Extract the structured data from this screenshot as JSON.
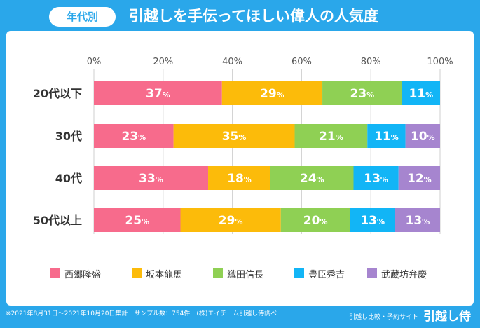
{
  "header": {
    "badge": "年代別",
    "title": "引越しを手伝ってほしい偉人の人気度"
  },
  "chart_data": {
    "type": "bar",
    "orientation": "horizontal",
    "stacked": true,
    "title": "引越しを手伝ってほしい偉人の人気度",
    "categories": [
      "20代以下",
      "30代",
      "40代",
      "50代以上"
    ],
    "series": [
      {
        "name": "西郷隆盛",
        "color": "#f76b8c",
        "values": [
          37,
          23,
          33,
          25
        ]
      },
      {
        "name": "坂本龍馬",
        "color": "#fcbb0a",
        "values": [
          29,
          35,
          18,
          29
        ]
      },
      {
        "name": "織田信長",
        "color": "#8fd054",
        "values": [
          23,
          21,
          24,
          20
        ]
      },
      {
        "name": "豊臣秀吉",
        "color": "#12b5f6",
        "values": [
          11,
          11,
          13,
          13
        ]
      },
      {
        "name": "武蔵坊弁慶",
        "color": "#a685cf",
        "values": [
          0,
          10,
          12,
          13
        ]
      }
    ],
    "xticks": [
      "0%",
      "20%",
      "40%",
      "60%",
      "80%",
      "100%"
    ],
    "xlim": [
      0,
      100
    ],
    "value_suffix": "%",
    "legend_position": "bottom"
  },
  "footer": {
    "note": "※2021年8月31日～2021年10月20日集計　サンプル数：754件　(株)エイチーム引越し侍調べ",
    "brand_small": "引越し比較・予約サイト",
    "brand": "引越し侍"
  }
}
